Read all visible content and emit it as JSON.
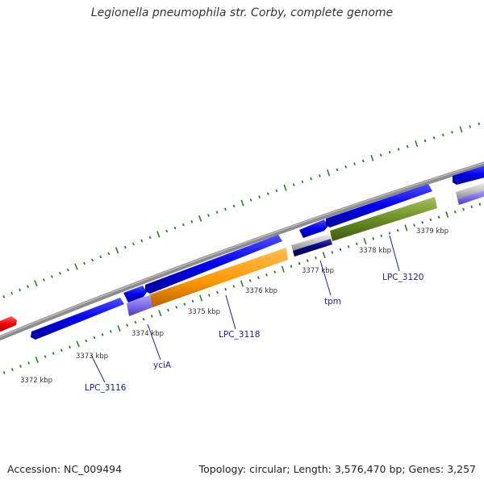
{
  "header": {
    "title": "Legionella pneumophila str. Corby, complete genome"
  },
  "footer": {
    "accession": "Accession: NC_009494",
    "stats": "Topology: circular; Length: 3,576,470 bp; Genes: 3,257"
  },
  "map": {
    "kbp_ticks": [
      "3372 kbp",
      "3373 kbp",
      "3374 kbp",
      "3375 kbp",
      "3376 kbp",
      "3377 kbp",
      "3378 kbp",
      "3379 kbp"
    ],
    "gene_labels": [
      "LPC_3116",
      "yciA",
      "LPC_3118",
      "tpm",
      "LPC_3120"
    ],
    "colors": {
      "backbone": "#8c8c8c",
      "cds_forward": "#0000ee",
      "cds_red": "#ee0000",
      "orange": "#ff9900",
      "olive": "#6b8e23",
      "lavender": "#7b68ee",
      "navy": "#00007a",
      "grey_feature": "#bbbbbb",
      "tick_green": "#2e7d2e",
      "label_blue": "#1a1aa8"
    }
  }
}
